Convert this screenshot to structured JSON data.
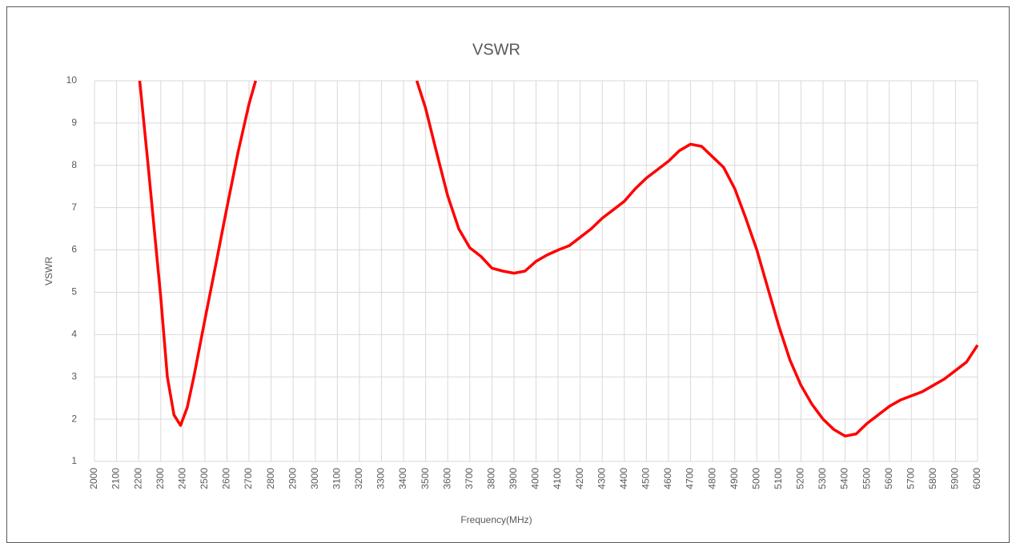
{
  "chart_data": {
    "type": "line",
    "title": "VSWR",
    "xlabel": "Frequency(MHz)",
    "ylabel": "VSWR",
    "x": [
      2205,
      2243,
      2300,
      2330,
      2360,
      2390,
      2420,
      2450,
      2500,
      2550,
      2600,
      2650,
      2700,
      2730,
      3100,
      3460,
      3500,
      3550,
      3600,
      3650,
      3700,
      3750,
      3800,
      3850,
      3900,
      3950,
      4000,
      4050,
      4100,
      4150,
      4200,
      4250,
      4300,
      4350,
      4400,
      4450,
      4500,
      4550,
      4600,
      4650,
      4700,
      4750,
      4800,
      4850,
      4900,
      4950,
      5000,
      5050,
      5100,
      5150,
      5200,
      5250,
      5300,
      5350,
      5400,
      5450,
      5500,
      5550,
      5600,
      5650,
      5700,
      5750,
      5800,
      5850,
      5900,
      5950,
      6000
    ],
    "series": [
      {
        "name": "VSWR",
        "color": "#ff0000",
        "values": [
          10,
          8.0,
          4.9,
          3.0,
          2.1,
          1.85,
          2.27,
          3.0,
          4.35,
          5.67,
          7.0,
          8.3,
          9.45,
          10,
          null,
          10,
          9.35,
          8.3,
          7.28,
          6.5,
          6.05,
          5.85,
          5.57,
          5.5,
          5.45,
          5.5,
          5.73,
          5.88,
          6.0,
          6.1,
          6.3,
          6.5,
          6.75,
          6.95,
          7.15,
          7.45,
          7.7,
          7.9,
          8.1,
          8.35,
          8.5,
          8.45,
          8.2,
          7.95,
          7.45,
          6.75,
          6.0,
          5.1,
          4.2,
          3.4,
          2.8,
          2.35,
          2.0,
          1.75,
          1.6,
          1.65,
          1.9,
          2.1,
          2.3,
          2.45,
          2.55,
          2.65,
          2.8,
          2.95,
          3.15,
          3.35,
          3.75
        ]
      }
    ],
    "xlim": [
      2000,
      6000
    ],
    "ylim": [
      1,
      10
    ],
    "xticks": [
      2000,
      2100,
      2200,
      2300,
      2400,
      2500,
      2600,
      2700,
      2800,
      2900,
      3000,
      3100,
      3200,
      3300,
      3400,
      3500,
      3600,
      3700,
      3800,
      3900,
      4000,
      4100,
      4200,
      4300,
      4400,
      4500,
      4600,
      4700,
      4800,
      4900,
      5000,
      5100,
      5200,
      5300,
      5400,
      5500,
      5600,
      5700,
      5800,
      5900,
      6000
    ],
    "yticks": [
      1,
      2,
      3,
      4,
      5,
      6,
      7,
      8,
      9,
      10
    ],
    "grid": true
  }
}
